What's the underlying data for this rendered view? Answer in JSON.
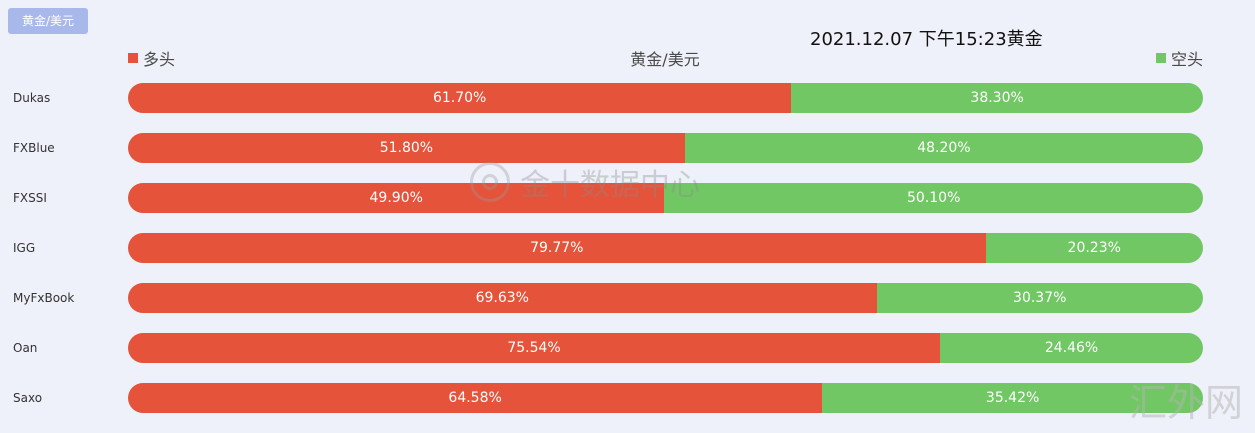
{
  "tab": {
    "label": "黄金/美元"
  },
  "timestamp": "2021.12.07 下午15:23黄金",
  "legend": {
    "long_label": "多头",
    "short_label": "空头",
    "long_color": "#e5533a",
    "short_color": "#72c765"
  },
  "watermark": {
    "text": "金十数据中心",
    "icon": "jin10-logo-icon"
  },
  "corner_logo": "汇外网",
  "chart_data": {
    "type": "bar",
    "orientation": "horizontal",
    "stacked": true,
    "percent": true,
    "title": "黄金/美元",
    "categories": [
      "Dukas",
      "FXBlue",
      "FXSSI",
      "IGG",
      "MyFxBook",
      "Oan",
      "Saxo"
    ],
    "series": [
      {
        "name": "多头",
        "color": "#e5533a",
        "values": [
          61.7,
          51.8,
          49.9,
          79.77,
          69.63,
          75.54,
          64.58
        ],
        "labels": [
          "61.70%",
          "51.80%",
          "49.90%",
          "79.77%",
          "69.63%",
          "75.54%",
          "64.58%"
        ]
      },
      {
        "name": "空头",
        "color": "#72c765",
        "values": [
          38.3,
          48.2,
          50.1,
          20.23,
          30.37,
          24.46,
          35.42
        ],
        "labels": [
          "38.30%",
          "48.20%",
          "50.10%",
          "20.23%",
          "30.37%",
          "24.46%",
          "35.42%"
        ]
      }
    ],
    "xlim": [
      0,
      100
    ]
  }
}
